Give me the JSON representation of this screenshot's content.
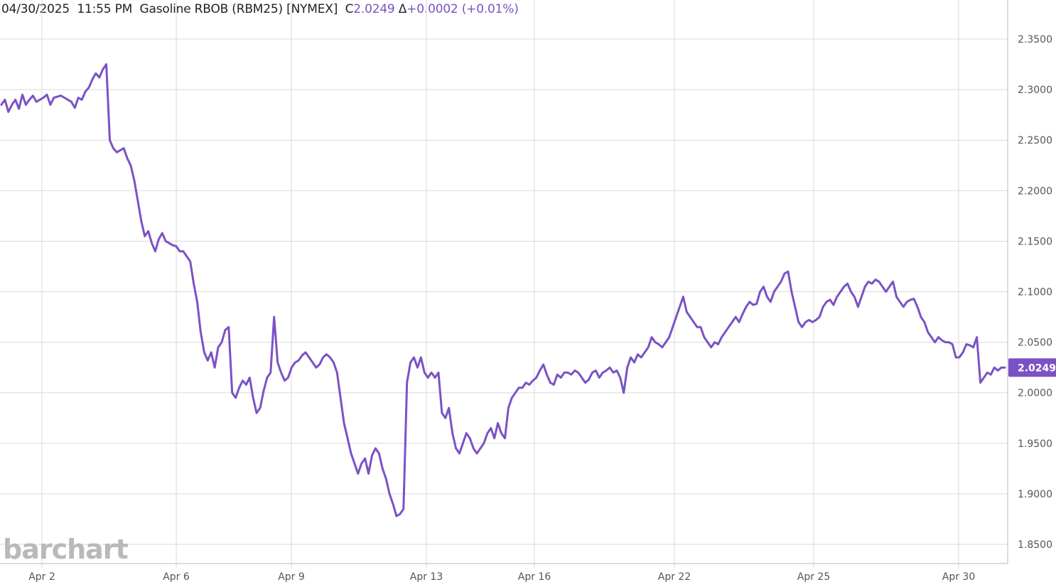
{
  "header": {
    "date": "04/30/2025",
    "time": "11:55 PM",
    "instrument": "Gasoline RBOB (RBM25) [NYMEX]",
    "close_prefix": "C",
    "close": "2.0249",
    "change_prefix": "Δ",
    "change": "+0.0002 (+0.01%)"
  },
  "watermark": "barchart",
  "last_price_label": "2.0249",
  "colors": {
    "line": "#7b52c4",
    "grid": "#d9d9d9",
    "text": "#555555",
    "tag_bg": "#7b52c4"
  },
  "chart_data": {
    "type": "line",
    "title": "Gasoline RBOB (RBM25) [NYMEX]",
    "xlabel": "",
    "ylabel": "",
    "ylim": [
      1.83,
      2.38
    ],
    "yticks": [
      "2.3500",
      "2.3000",
      "2.2500",
      "2.2000",
      "2.1500",
      "2.1000",
      "2.0500",
      "2.0000",
      "1.9500",
      "1.9000",
      "1.8500"
    ],
    "xticks": [
      "Apr 2",
      "Apr 6",
      "Apr 9",
      "Apr 13",
      "Apr 16",
      "Apr 22",
      "Apr 25",
      "Apr 30"
    ],
    "grid": true,
    "legend": "none",
    "series": [
      {
        "values": [
          2.285,
          2.29,
          2.278,
          2.285,
          2.29,
          2.281,
          2.295,
          2.285,
          2.29,
          2.294,
          2.288,
          2.29,
          2.292,
          2.295,
          2.285,
          2.292,
          2.293,
          2.294,
          2.292,
          2.29,
          2.288,
          2.282,
          2.292,
          2.29,
          2.298,
          2.302,
          2.31,
          2.316,
          2.312,
          2.32,
          2.325,
          2.25,
          2.242,
          2.238,
          2.24,
          2.242,
          2.232,
          2.225,
          2.21,
          2.19,
          2.17,
          2.155,
          2.16,
          2.148,
          2.14,
          2.152,
          2.158,
          2.15,
          2.148,
          2.146,
          2.145,
          2.14,
          2.14,
          2.135,
          2.13,
          2.108,
          2.09,
          2.06,
          2.04,
          2.032,
          2.04,
          2.025,
          2.045,
          2.05,
          2.062,
          2.065,
          2.0,
          1.995,
          2.005,
          2.012,
          2.008,
          2.015,
          1.995,
          1.98,
          1.985,
          2.002,
          2.015,
          2.02,
          2.075,
          2.03,
          2.02,
          2.012,
          2.015,
          2.025,
          2.03,
          2.032,
          2.037,
          2.04,
          2.035,
          2.03,
          2.025,
          2.028,
          2.035,
          2.038,
          2.035,
          2.03,
          2.02,
          1.995,
          1.97,
          1.955,
          1.94,
          1.93,
          1.92,
          1.93,
          1.935,
          1.92,
          1.938,
          1.945,
          1.94,
          1.925,
          1.915,
          1.9,
          1.89,
          1.878,
          1.88,
          1.885,
          2.01,
          2.03,
          2.035,
          2.025,
          2.035,
          2.02,
          2.015,
          2.02,
          2.015,
          2.02,
          1.98,
          1.975,
          1.985,
          1.96,
          1.945,
          1.94,
          1.95,
          1.96,
          1.955,
          1.945,
          1.94,
          1.945,
          1.95,
          1.96,
          1.965,
          1.955,
          1.97,
          1.96,
          1.955,
          1.985,
          1.995,
          2.0,
          2.005,
          2.005,
          2.01,
          2.008,
          2.012,
          2.015,
          2.022,
          2.028,
          2.018,
          2.01,
          2.008,
          2.018,
          2.015,
          2.02,
          2.02,
          2.018,
          2.022,
          2.02,
          2.015,
          2.01,
          2.013,
          2.02,
          2.022,
          2.015,
          2.02,
          2.022,
          2.025,
          2.02,
          2.022,
          2.015,
          2.0,
          2.025,
          2.035,
          2.03,
          2.038,
          2.035,
          2.04,
          2.045,
          2.055,
          2.05,
          2.048,
          2.045,
          2.05,
          2.055,
          2.065,
          2.075,
          2.085,
          2.095,
          2.08,
          2.075,
          2.07,
          2.065,
          2.065,
          2.055,
          2.05,
          2.045,
          2.05,
          2.048,
          2.055,
          2.06,
          2.065,
          2.07,
          2.075,
          2.07,
          2.078,
          2.085,
          2.09,
          2.087,
          2.088,
          2.1,
          2.105,
          2.095,
          2.09,
          2.1,
          2.105,
          2.11,
          2.118,
          2.12,
          2.1,
          2.085,
          2.07,
          2.065,
          2.07,
          2.072,
          2.07,
          2.072,
          2.075,
          2.085,
          2.09,
          2.092,
          2.087,
          2.095,
          2.1,
          2.105,
          2.108,
          2.1,
          2.095,
          2.085,
          2.095,
          2.105,
          2.11,
          2.108,
          2.112,
          2.11,
          2.105,
          2.1,
          2.105,
          2.11,
          2.095,
          2.09,
          2.085,
          2.09,
          2.092,
          2.093,
          2.085,
          2.075,
          2.07,
          2.06,
          2.055,
          2.05,
          2.055,
          2.052,
          2.05,
          2.05,
          2.048,
          2.035,
          2.035,
          2.04,
          2.048,
          2.047,
          2.045,
          2.055,
          2.01,
          2.015,
          2.02,
          2.018,
          2.025,
          2.022,
          2.025,
          2.025
        ]
      }
    ]
  }
}
